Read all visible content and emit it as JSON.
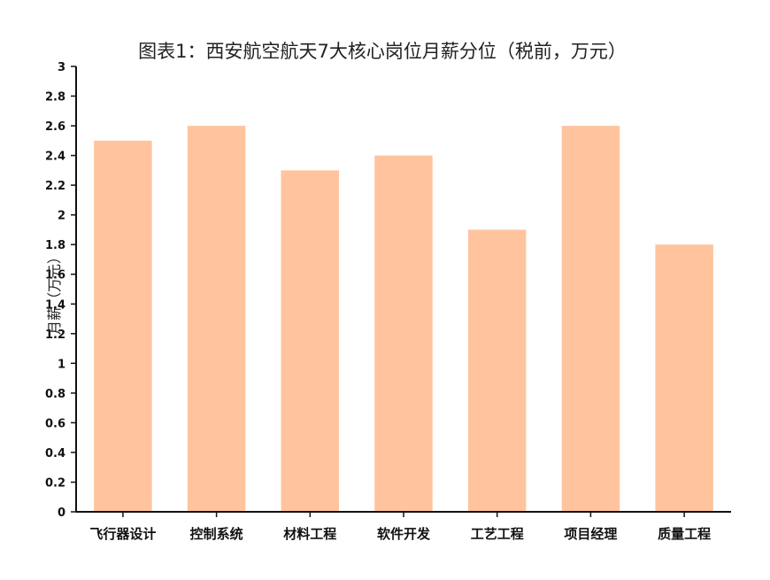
{
  "chart_data": {
    "type": "bar",
    "title": "图表1：西安航空航天7大核心岗位月薪分位（税前，万元）",
    "xlabel": "",
    "ylabel": "月薪（万元）",
    "categories": [
      "飞行器设计",
      "控制系统",
      "材料工程",
      "软件开发",
      "工艺工程",
      "项目经理",
      "质量工程"
    ],
    "series": [
      {
        "values": [
          2.5,
          2.6,
          2.3,
          2.4,
          1.9,
          2.6,
          1.8
        ]
      }
    ],
    "ylim": [
      0,
      3
    ],
    "yticks": [
      "0",
      "0.2",
      "0.4",
      "0.6",
      "0.8",
      "1",
      "1.2",
      "1.4",
      "1.6",
      "1.8",
      "2",
      "2.2",
      "2.4",
      "2.6",
      "2.8",
      "3"
    ],
    "grid": false,
    "legend": "none",
    "colors": {
      "bar": "#ffc49e",
      "axis": "#111111"
    }
  }
}
